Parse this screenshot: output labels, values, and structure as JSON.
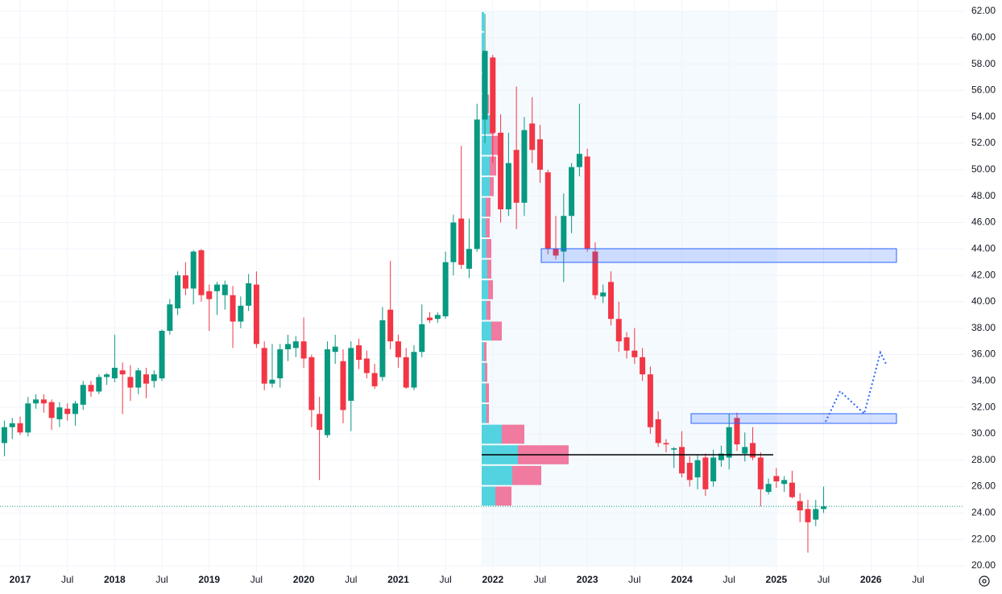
{
  "chart_data": {
    "type": "candlestick",
    "categories": [
      null,
      null,
      "2017",
      null,
      null,
      null,
      null,
      null,
      "Jul",
      null,
      null,
      null,
      null,
      null,
      "2018",
      null,
      null,
      null,
      null,
      null,
      "Jul",
      null,
      null,
      null,
      null,
      null,
      "2019",
      null,
      null,
      null,
      null,
      null,
      "Jul",
      null,
      null,
      null,
      null,
      null,
      "2020",
      null,
      null,
      null,
      null,
      null,
      "Jul",
      null,
      null,
      null,
      null,
      null,
      "2021",
      null,
      null,
      null,
      null,
      null,
      "Jul",
      null,
      null,
      null,
      null,
      null,
      "2022",
      null,
      null,
      null,
      null,
      null,
      "Jul",
      null,
      null,
      null,
      null,
      null,
      "2023",
      null,
      null,
      null,
      null,
      null,
      "Jul",
      null,
      null,
      null,
      null,
      null,
      "2024",
      null,
      null,
      null,
      null,
      null,
      "Jul",
      null,
      null,
      null,
      null,
      null,
      "2025",
      null,
      null,
      null,
      null,
      null,
      "Jul",
      null,
      null,
      null,
      null,
      null,
      "2026",
      null,
      null,
      null,
      null,
      null,
      "Jul",
      null
    ],
    "open": [
      29.3,
      30.5,
      30.8,
      30.1,
      32.3,
      32.6,
      32.4,
      31.1,
      31.9,
      31.5,
      32.2,
      33.7,
      33.2,
      34.3,
      34.2,
      34.8,
      34.3,
      33.5,
      34.5,
      34.0,
      34.2,
      37.8,
      39.5,
      42.0,
      41.0,
      43.9,
      40.8,
      40.8,
      40.5,
      40.5,
      38.5,
      39.7,
      41.3,
      36.5,
      33.8,
      34.2,
      36.4,
      36.5,
      37.0,
      35.8,
      31.5,
      29.9,
      36.2,
      35.5,
      32.5,
      36.7,
      35.7,
      34.6,
      34.3,
      39.4,
      37.0,
      35.8,
      33.5,
      36.2,
      38.8,
      38.7,
      38.9,
      43.0,
      46.3,
      42.5,
      44.0,
      53.8,
      58.5,
      52.8,
      47.0,
      51.5,
      47.5,
      53.5,
      52.3,
      49.8,
      44.0,
      43.8,
      46.5,
      50.2,
      51.0,
      43.8,
      40.4,
      41.5,
      38.7,
      37.3,
      36.3,
      35.8,
      34.5,
      31.1,
      29.3,
      28.8,
      29.0,
      27.8,
      26.7,
      28.2,
      26.4,
      28.0,
      28.2,
      31.2,
      28.5,
      29.3,
      28.2,
      25.6,
      26.8,
      26.2,
      26.3,
      24.9,
      24.3,
      23.5,
      24.3,
      null,
      null,
      null,
      null,
      null,
      null,
      null,
      null,
      null,
      null,
      null,
      null,
      null
    ],
    "high": [
      31.0,
      31.2,
      31.3,
      32.8,
      33.0,
      33.0,
      32.6,
      32.4,
      32.3,
      32.5,
      34.0,
      34.0,
      34.5,
      34.6,
      37.5,
      35.4,
      35.2,
      35.0,
      35.0,
      34.8,
      37.9,
      40.2,
      42.3,
      43.0,
      43.9,
      44.0,
      41.3,
      41.5,
      41.6,
      41.2,
      40.4,
      42.1,
      42.3,
      37.0,
      36.8,
      36.8,
      37.5,
      37.4,
      38.8,
      36.0,
      32.8,
      37.0,
      37.5,
      36.4,
      37.0,
      37.2,
      36.3,
      35.3,
      39.6,
      43.1,
      37.5,
      36.5,
      36.7,
      39.8,
      39.2,
      39.2,
      43.8,
      46.6,
      51.8,
      46.3,
      55.0,
      61.8,
      58.7,
      54.2,
      52.8,
      56.3,
      54.0,
      55.5,
      53.4,
      50.0,
      46.5,
      48.2,
      50.5,
      55.0,
      51.6,
      44.5,
      41.3,
      42.3,
      40.0,
      37.7,
      38.0,
      36.5,
      35.1,
      31.7,
      29.6,
      29.0,
      30.2,
      28.3,
      28.4,
      28.5,
      28.8,
      29.1,
      31.5,
      31.6,
      30.1,
      30.5,
      28.6,
      26.6,
      27.4,
      26.8,
      27.2,
      25.5,
      25.0,
      25.0,
      26.0,
      null,
      null,
      null,
      null,
      null,
      null,
      null,
      null,
      null,
      null,
      null,
      null,
      null
    ],
    "low": [
      28.3,
      29.6,
      29.9,
      29.8,
      31.9,
      31.6,
      30.3,
      30.5,
      31.0,
      30.6,
      31.8,
      32.8,
      33.0,
      33.7,
      33.9,
      31.5,
      32.5,
      33.0,
      32.7,
      33.5,
      34.0,
      37.5,
      39.0,
      40.5,
      39.8,
      40.0,
      37.8,
      39.0,
      39.4,
      36.5,
      38.0,
      39.3,
      36.5,
      33.3,
      33.5,
      33.5,
      35.5,
      35.8,
      35.0,
      30.5,
      26.5,
      29.7,
      35.3,
      30.8,
      30.2,
      34.9,
      34.2,
      33.4,
      34.0,
      36.4,
      35.0,
      33.4,
      33.3,
      35.8,
      38.4,
      38.4,
      38.7,
      42.0,
      42.5,
      41.8,
      43.8,
      52.0,
      50.5,
      46.0,
      46.5,
      45.5,
      46.5,
      50.5,
      49.0,
      43.6,
      43.2,
      41.5,
      45.2,
      49.5,
      43.8,
      40.2,
      39.9,
      38.2,
      36.2,
      35.7,
      35.3,
      34.0,
      30.0,
      29.0,
      28.6,
      27.4,
      26.7,
      26.0,
      25.8,
      25.3,
      26.0,
      27.5,
      27.3,
      28.7,
      27.9,
      28.0,
      24.5,
      25.4,
      25.9,
      25.6,
      25.1,
      23.3,
      21.0,
      23.0,
      24.0,
      null,
      null,
      null,
      null,
      null,
      null,
      null,
      null,
      null,
      null,
      null,
      null,
      null
    ],
    "close": [
      30.5,
      30.8,
      30.1,
      32.3,
      32.6,
      32.3,
      31.2,
      32.0,
      31.5,
      32.3,
      33.7,
      33.2,
      34.3,
      34.5,
      35.0,
      34.5,
      33.5,
      34.8,
      33.8,
      34.5,
      37.8,
      39.8,
      42.0,
      41.0,
      43.8,
      40.5,
      40.2,
      41.3,
      41.3,
      38.5,
      39.7,
      41.4,
      36.8,
      33.8,
      34.1,
      36.4,
      36.8,
      37.0,
      35.7,
      31.8,
      30.3,
      36.4,
      36.6,
      31.8,
      36.5,
      35.6,
      34.6,
      33.6,
      38.6,
      37.0,
      35.8,
      33.5,
      36.2,
      38.3,
      38.6,
      39.0,
      43.0,
      46.0,
      42.8,
      44.0,
      53.8,
      59.0,
      52.8,
      47.0,
      50.5,
      47.5,
      53.0,
      51.5,
      50.0,
      44.0,
      43.5,
      46.5,
      50.2,
      51.2,
      44.0,
      40.5,
      40.7,
      38.7,
      37.0,
      36.3,
      35.8,
      34.5,
      30.5,
      29.3,
      29.2,
      28.9,
      27.0,
      26.5,
      28.0,
      25.8,
      28.2,
      28.5,
      30.5,
      29.2,
      29.0,
      28.2,
      25.8,
      26.2,
      26.4,
      26.5,
      25.2,
      24.2,
      23.3,
      24.3,
      24.5,
      null,
      null,
      null,
      null,
      null,
      null,
      null,
      null,
      null,
      null,
      null,
      null,
      null
    ],
    "up_color": "#089981",
    "down_color": "#f23645",
    "ylim": [
      20,
      62
    ],
    "yticks": [
      {
        "value": 20,
        "label": "20.00"
      },
      {
        "value": 22,
        "label": "22.00"
      },
      {
        "value": 24,
        "label": "24.00"
      },
      {
        "value": 26,
        "label": "26.00"
      },
      {
        "value": 28,
        "label": "28.00"
      },
      {
        "value": 30,
        "label": "30.00"
      },
      {
        "value": 32,
        "label": "32.00"
      },
      {
        "value": 34,
        "label": "34.00"
      },
      {
        "value": 36,
        "label": "36.00"
      },
      {
        "value": 38,
        "label": "38.00"
      },
      {
        "value": 40,
        "label": "40.00"
      },
      {
        "value": 42,
        "label": "42.00"
      },
      {
        "value": 44,
        "label": "44.00"
      },
      {
        "value": 46,
        "label": "46.00"
      },
      {
        "value": 48,
        "label": "48.00"
      },
      {
        "value": 50,
        "label": "50.00"
      },
      {
        "value": 52,
        "label": "52.00"
      },
      {
        "value": 54,
        "label": "54.00"
      },
      {
        "value": 56,
        "label": "56.00"
      },
      {
        "value": 58,
        "label": "58.00"
      },
      {
        "value": 60,
        "label": "60.00"
      },
      {
        "value": 62,
        "label": "62.00"
      }
    ],
    "grid": true,
    "volume_profile": {
      "bins": [
        24.5,
        26.06,
        27.63,
        29.19,
        30.75,
        32.31,
        33.88,
        35.44,
        37.0,
        38.56,
        40.13,
        41.69,
        43.25,
        44.81,
        46.38,
        47.94,
        49.5,
        51.06,
        52.63,
        54.19,
        55.75,
        57.31,
        58.88,
        60.44,
        62.0
      ],
      "up": [
        17,
        38,
        45,
        25,
        6,
        5,
        4,
        3,
        12,
        6,
        8,
        7,
        6,
        5,
        5,
        10,
        10,
        12,
        10,
        5,
        4,
        4,
        3,
        3
      ],
      "down": [
        20,
        36,
        63,
        28,
        3,
        4,
        3,
        3,
        13,
        5,
        6,
        5,
        6,
        5,
        6,
        5,
        8,
        10,
        6,
        4,
        0,
        0,
        0,
        0
      ],
      "up_color": "#53d3e0",
      "down_color": "#f07aa0"
    }
  }
}
